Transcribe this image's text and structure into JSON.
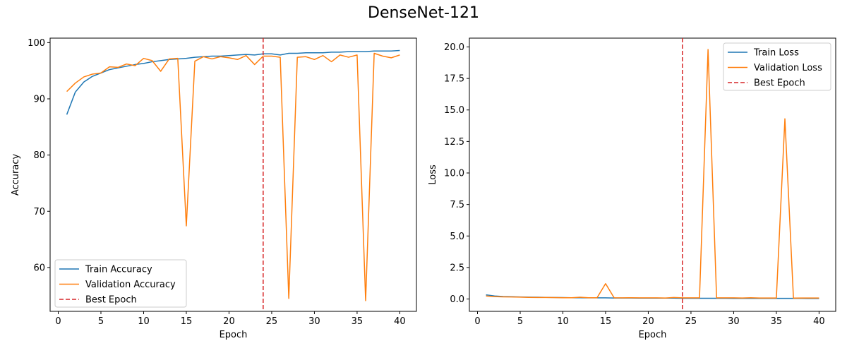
{
  "figure": {
    "suptitle": "DenseNet-121"
  },
  "colors": {
    "train": "#1f77b4",
    "validation": "#ff7f0e",
    "best_epoch": "#d62728"
  },
  "chart_data": [
    {
      "type": "line",
      "xlabel": "Epoch",
      "ylabel": "Accuracy",
      "xlim": [
        -0.95,
        41.95
      ],
      "ylim": [
        52.2,
        100.8
      ],
      "xticks": [
        0,
        5,
        10,
        15,
        20,
        25,
        30,
        35,
        40
      ],
      "yticks": [
        60,
        70,
        80,
        90,
        100
      ],
      "grid": false,
      "legend_position": "lower-left",
      "best_epoch": 24,
      "x": [
        1,
        2,
        3,
        4,
        5,
        6,
        7,
        8,
        9,
        10,
        11,
        12,
        13,
        14,
        15,
        16,
        17,
        18,
        19,
        20,
        21,
        22,
        23,
        24,
        25,
        26,
        27,
        28,
        29,
        30,
        31,
        32,
        33,
        34,
        35,
        36,
        37,
        38,
        39,
        40
      ],
      "series": [
        {
          "name": "Train Accuracy",
          "color": "#1f77b4",
          "values": [
            87.2,
            91.2,
            93.0,
            94.0,
            94.6,
            95.2,
            95.5,
            95.8,
            96.1,
            96.3,
            96.6,
            96.8,
            97.0,
            97.1,
            97.2,
            97.4,
            97.5,
            97.6,
            97.6,
            97.7,
            97.8,
            97.9,
            97.8,
            98.0,
            98.0,
            97.8,
            98.1,
            98.1,
            98.2,
            98.2,
            98.2,
            98.3,
            98.3,
            98.4,
            98.4,
            98.4,
            98.5,
            98.5,
            98.5,
            98.6
          ],
          "style": "solid"
        },
        {
          "name": "Validation Accuracy",
          "color": "#ff7f0e",
          "values": [
            91.3,
            92.8,
            93.9,
            94.4,
            94.6,
            95.7,
            95.6,
            96.2,
            95.9,
            97.2,
            96.8,
            94.9,
            97.1,
            97.2,
            67.4,
            96.7,
            97.5,
            97.1,
            97.5,
            97.3,
            97.0,
            97.7,
            96.1,
            97.6,
            97.6,
            97.4,
            54.5,
            97.4,
            97.5,
            97.0,
            97.7,
            96.6,
            97.8,
            97.4,
            97.8,
            54.1,
            98.1,
            97.6,
            97.3,
            97.8
          ],
          "style": "solid"
        },
        {
          "name": "Best Epoch",
          "color": "#d62728",
          "style": "dashed"
        }
      ]
    },
    {
      "type": "line",
      "xlabel": "Epoch",
      "ylabel": "Loss",
      "xlim": [
        -0.95,
        41.95
      ],
      "ylim": [
        -0.98,
        20.7
      ],
      "xticks": [
        0,
        5,
        10,
        15,
        20,
        25,
        30,
        35,
        40
      ],
      "yticks": [
        0.0,
        2.5,
        5.0,
        7.5,
        10.0,
        12.5,
        15.0,
        17.5,
        20.0
      ],
      "ytick_labels": [
        "0.0",
        "2.5",
        "5.0",
        "7.5",
        "10.0",
        "12.5",
        "15.0",
        "17.5",
        "20.0"
      ],
      "grid": false,
      "legend_position": "upper-right",
      "best_epoch": 24,
      "x": [
        1,
        2,
        3,
        4,
        5,
        6,
        7,
        8,
        9,
        10,
        11,
        12,
        13,
        14,
        15,
        16,
        17,
        18,
        19,
        20,
        21,
        22,
        23,
        24,
        25,
        26,
        27,
        28,
        29,
        30,
        31,
        32,
        33,
        34,
        35,
        36,
        37,
        38,
        39,
        40
      ],
      "series": [
        {
          "name": "Train Loss",
          "color": "#1f77b4",
          "values": [
            0.33,
            0.24,
            0.2,
            0.18,
            0.16,
            0.15,
            0.14,
            0.13,
            0.12,
            0.11,
            0.1,
            0.1,
            0.09,
            0.09,
            0.09,
            0.08,
            0.08,
            0.08,
            0.07,
            0.07,
            0.07,
            0.07,
            0.07,
            0.06,
            0.06,
            0.06,
            0.06,
            0.06,
            0.06,
            0.05,
            0.05,
            0.05,
            0.05,
            0.05,
            0.05,
            0.05,
            0.05,
            0.05,
            0.04,
            0.04
          ],
          "style": "solid"
        },
        {
          "name": "Validation Loss",
          "color": "#ff7f0e",
          "values": [
            0.24,
            0.19,
            0.17,
            0.16,
            0.15,
            0.13,
            0.12,
            0.12,
            0.11,
            0.1,
            0.1,
            0.14,
            0.1,
            0.1,
            1.22,
            0.1,
            0.09,
            0.1,
            0.09,
            0.09,
            0.09,
            0.08,
            0.12,
            0.09,
            0.09,
            0.09,
            19.8,
            0.09,
            0.09,
            0.09,
            0.08,
            0.1,
            0.08,
            0.08,
            0.08,
            14.3,
            0.07,
            0.08,
            0.08,
            0.08
          ],
          "style": "solid"
        },
        {
          "name": "Best Epoch",
          "color": "#d62728",
          "style": "dashed"
        }
      ]
    }
  ]
}
